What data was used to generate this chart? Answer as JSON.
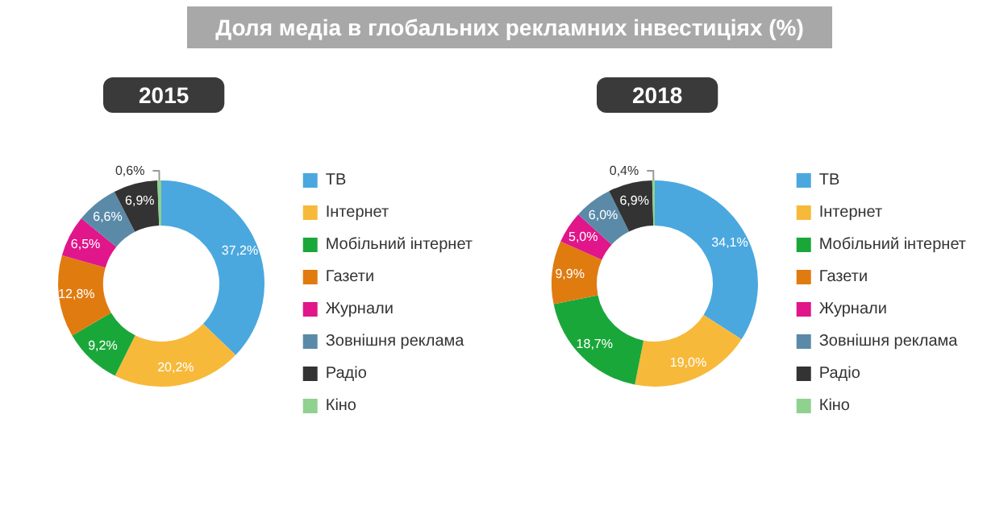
{
  "chart_data": [
    {
      "type": "donut",
      "title": "Доля медіа в глобальних рекламних інвестиціях (%)",
      "subtitle": "2015",
      "categories": [
        "ТВ",
        "Інтернет",
        "Мобільний інтернет",
        "Газети",
        "Журнали",
        "Зовнішня реклама",
        "Радіо",
        "Кіно"
      ],
      "values": [
        37.2,
        20.2,
        9.2,
        12.8,
        6.5,
        6.6,
        6.9,
        0.6
      ],
      "value_labels": [
        "37,2%",
        "20,2%",
        "9,2%",
        "12,8%",
        "6,5%",
        "6,6%",
        "6,9%",
        "0,6%"
      ],
      "colors": [
        "#4aa8df",
        "#f7b93a",
        "#1aa73a",
        "#e07b10",
        "#e0168a",
        "#5a8aa8",
        "#333333",
        "#8fd18f"
      ],
      "legend": "right"
    },
    {
      "type": "donut",
      "subtitle": "2018",
      "categories": [
        "ТВ",
        "Інтернет",
        "Мобільний інтернет",
        "Газети",
        "Журнали",
        "Зовнішня реклама",
        "Радіо",
        "Кіно"
      ],
      "values": [
        34.1,
        19.0,
        18.7,
        9.9,
        5.0,
        6.0,
        6.9,
        0.4
      ],
      "value_labels": [
        "34,1%",
        "19,0%",
        "18,7%",
        "9,9%",
        "5,0%",
        "6,0%",
        "6,9%",
        "0,4%"
      ],
      "colors": [
        "#4aa8df",
        "#f7b93a",
        "#1aa73a",
        "#e07b10",
        "#e0168a",
        "#5a8aa8",
        "#333333",
        "#8fd18f"
      ],
      "legend": "right"
    }
  ]
}
